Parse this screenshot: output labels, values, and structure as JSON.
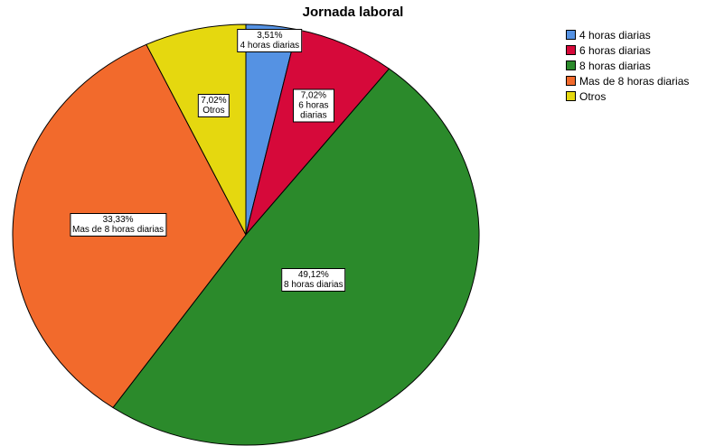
{
  "chart_data": {
    "type": "pie",
    "title": "Jornada laboral",
    "categories": [
      "4 horas diarias",
      "6 horas diarias",
      "8 horas diarias",
      "Mas de 8 horas diarias",
      "Otros"
    ],
    "values": [
      3.51,
      7.02,
      49.12,
      33.33,
      7.02
    ],
    "value_labels": [
      "3,51%",
      "7,02%",
      "49,12%",
      "33,33%",
      "7,02%"
    ],
    "slice_labels": [
      "4 horas diarias",
      "6 horas diarias",
      "8 horas diarias",
      "Mas de 8 horas diarias",
      "Otros"
    ],
    "colors": [
      "#5592e3",
      "#d6093a",
      "#2b8a2b",
      "#f26a2c",
      "#e5d80f"
    ],
    "legend": {
      "placement": "top-right",
      "items": [
        "4 horas diarias",
        "6 horas diarias",
        "8 horas diarias",
        "Mas de 8 horas diarias",
        "Otros"
      ]
    },
    "start": "12 o'clock",
    "direction": "clockwise"
  }
}
